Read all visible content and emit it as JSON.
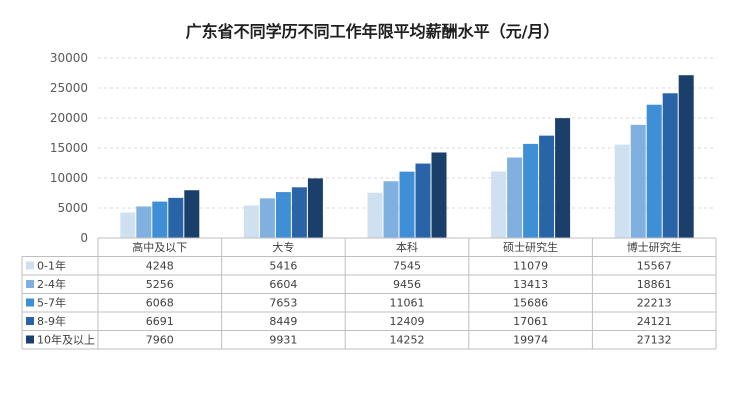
{
  "chart_data": {
    "type": "bar",
    "title": "广东省不同学历不同工作年限平均薪酬水平（元/月）",
    "categories": [
      "高中及以下",
      "大专",
      "本科",
      "硕士研究生",
      "博士研究生"
    ],
    "ylim": [
      0,
      30000
    ],
    "yticks": [
      "30000",
      "25000",
      "20000",
      "15000",
      "10000",
      "5000",
      "0"
    ],
    "grid": true,
    "legend": "data-table",
    "series": [
      {
        "name": "0-1年",
        "color": "#cfe0f1",
        "values": [
          4248,
          5416,
          7545,
          11079,
          15567
        ]
      },
      {
        "name": "2-4年",
        "color": "#7fb0e0",
        "values": [
          5256,
          6604,
          9456,
          13413,
          18861
        ]
      },
      {
        "name": "5-7年",
        "color": "#3f8fd6",
        "values": [
          6068,
          7653,
          11061,
          15686,
          22213
        ]
      },
      {
        "name": "8-9年",
        "color": "#2a64a8",
        "values": [
          6691,
          8449,
          12409,
          17061,
          24121
        ]
      },
      {
        "name": "10年及以上",
        "color": "#1a3f6a",
        "values": [
          7960,
          9931,
          14252,
          19974,
          27132
        ]
      }
    ]
  }
}
